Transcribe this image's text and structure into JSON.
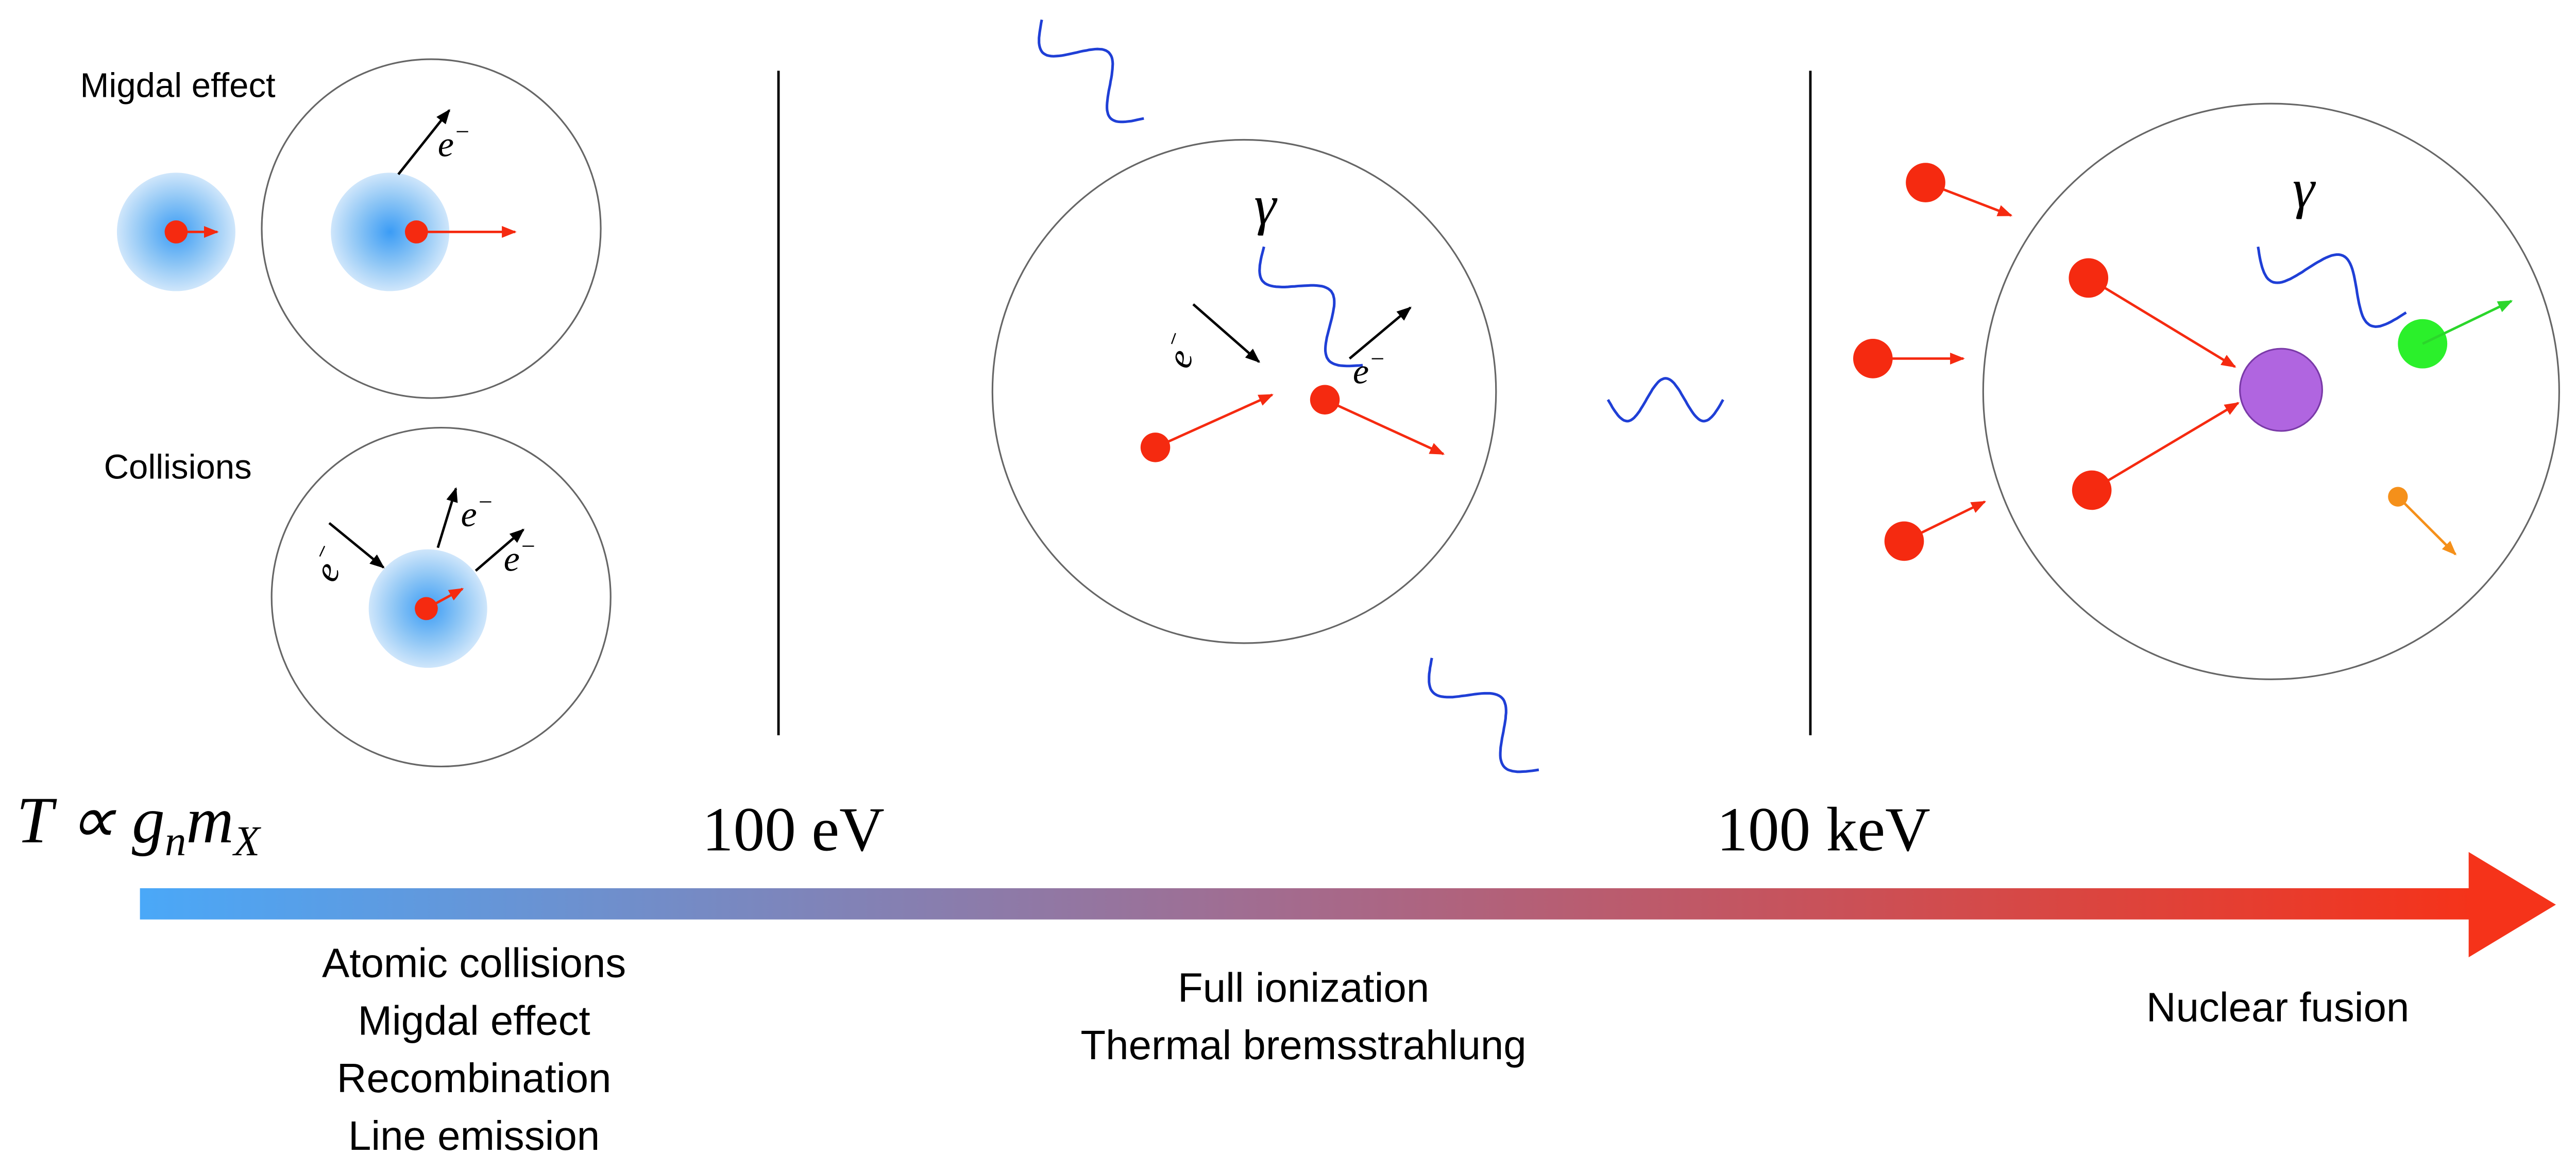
{
  "panel_labels": [
    "Migdal effect",
    "Collisions"
  ],
  "particle_labels": {
    "electron": "e",
    "charge": "−",
    "photon": "γ"
  },
  "formula": [
    "T ∝ g",
    "n",
    "m",
    "X"
  ],
  "thresholds": [
    "100 eV",
    "100 keV"
  ],
  "regimes": [
    [
      "Atomic collisions",
      "Migdal effect",
      "Recombination",
      "Line emission"
    ],
    [
      "Full ionization",
      "Thermal bremsstrahlung"
    ],
    [
      "Nuclear fusion"
    ]
  ]
}
